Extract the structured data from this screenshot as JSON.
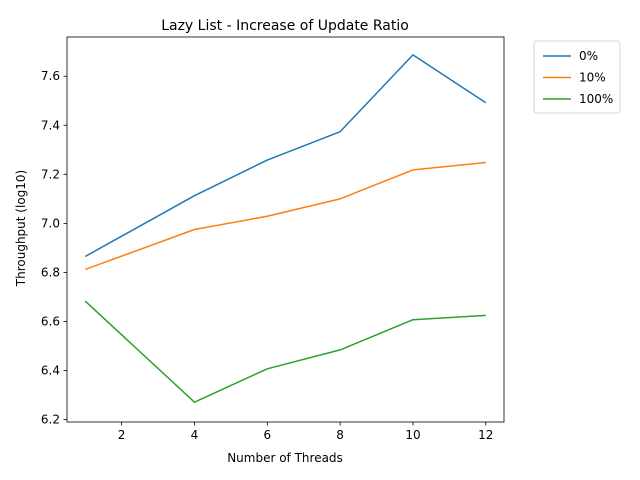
{
  "chart_data": {
    "type": "line",
    "title": "Lazy List - Increase of Update Ratio",
    "xlabel": "Number of Threads",
    "ylabel": "Throughput (log10)",
    "x": [
      1,
      4,
      6,
      8,
      10,
      12
    ],
    "xlim": [
      0.5,
      12.5
    ],
    "ylim": [
      6.19,
      7.76
    ],
    "xticks": [
      2,
      4,
      6,
      8,
      10,
      12
    ],
    "yticks": [
      6.2,
      6.4,
      6.6,
      6.8,
      7.0,
      7.2,
      7.4,
      7.6
    ],
    "legend_position": "upper right, outside plot",
    "grid": false,
    "series": [
      {
        "name": "0%",
        "color": "#1f77b4",
        "values": [
          6.865,
          7.113,
          7.258,
          7.374,
          7.687,
          7.492
        ]
      },
      {
        "name": "10%",
        "color": "#ff7f0e",
        "values": [
          6.812,
          6.975,
          7.029,
          7.1,
          7.218,
          7.248
        ]
      },
      {
        "name": "100%",
        "color": "#2ca02c",
        "values": [
          6.683,
          6.271,
          6.407,
          6.484,
          6.607,
          6.625
        ]
      }
    ]
  }
}
